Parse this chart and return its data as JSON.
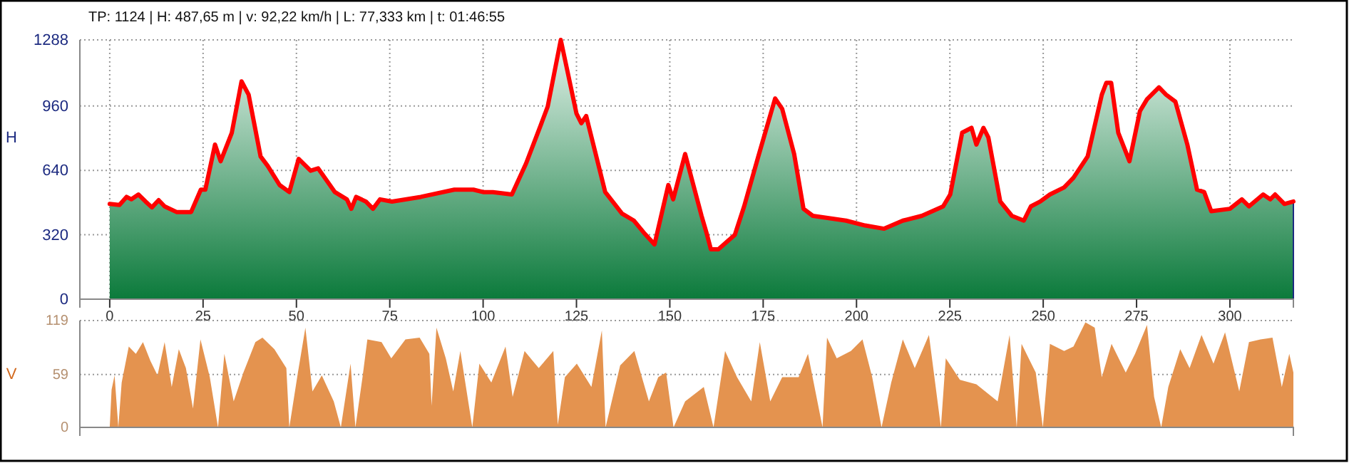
{
  "chart_data": [
    {
      "type": "area",
      "title": "TP: 1124 | H: 487,65 m | v: 92,22 km/h | L: 77,333 km | t: 01:46:55",
      "ylabel": "H",
      "color": "#ff0000",
      "x": [
        0,
        2.6,
        4.5,
        5.8,
        7.7,
        9.6,
        11.3,
        13.1,
        14.7,
        17.9,
        21.8,
        24.4,
        25.6,
        28.2,
        29.7,
        32.7,
        35.3,
        37.2,
        40.4,
        42.3,
        45.5,
        48.1,
        50.6,
        53.8,
        55.8,
        60.3,
        63.5,
        64.7,
        66,
        68.6,
        70.5,
        72.4,
        75.6,
        83.3,
        92.3,
        97.4,
        100,
        102.6,
        107.7,
        111.5,
        115.4,
        117.3,
        120.8,
        125,
        126.3,
        127.6,
        132.7,
        137.2,
        140.4,
        143,
        145.9,
        149.6,
        150.9,
        154.1,
        158.5,
        159.8,
        161,
        163,
        167.4,
        169.9,
        173.7,
        178.2,
        180.1,
        183.3,
        185.8,
        188.3,
        197.2,
        202.3,
        207.4,
        212.4,
        217.5,
        223.2,
        225.1,
        228.3,
        230.8,
        232.1,
        234,
        235.3,
        238.5,
        241.6,
        244.8,
        246.7,
        249.2,
        251.8,
        255.6,
        258.1,
        261.9,
        265.7,
        266.9,
        268.2,
        270.1,
        273.1,
        275.9,
        277.8,
        281,
        282.9,
        285.4,
        288.6,
        291.2,
        293.1,
        295,
        300,
        303.2,
        305.1,
        308.9,
        310.8,
        312.1,
        314.6,
        317
      ],
      "values": [
        473,
        468,
        508,
        496,
        520,
        485,
        456,
        492,
        461,
        433,
        433,
        544,
        544,
        768,
        685,
        827,
        1082,
        1016,
        709,
        662,
        567,
        532,
        697,
        638,
        650,
        532,
        496,
        449,
        508,
        485,
        449,
        496,
        485,
        508,
        544,
        544,
        532,
        532,
        520,
        674,
        863,
        957,
        1288,
        922,
        874,
        910,
        532,
        425,
        390,
        331,
        272,
        567,
        496,
        721,
        414,
        331,
        248,
        248,
        319,
        461,
        709,
        997,
        945,
        721,
        449,
        414,
        390,
        366,
        350,
        390,
        414,
        461,
        520,
        827,
        851,
        768,
        851,
        804,
        485,
        414,
        390,
        461,
        485,
        520,
        555,
        603,
        709,
        1016,
        1075,
        1075,
        827,
        685,
        934,
        993,
        1052,
        1016,
        981,
        768,
        544,
        532,
        437,
        449,
        496,
        461,
        520,
        496,
        520,
        473,
        485
      ],
      "xlim": [
        -8,
        317
      ],
      "xticks": [
        0,
        25,
        50,
        75,
        100,
        125,
        150,
        175,
        200,
        225,
        250,
        275,
        300
      ],
      "ylim": [
        0,
        1288
      ],
      "yticks": [
        0,
        320,
        640,
        960,
        1288
      ],
      "grid": true
    },
    {
      "type": "area",
      "ylabel": "V",
      "color": "#e4934f",
      "x": [
        0,
        0.5,
        1.3,
        2.3,
        3.2,
        5.1,
        7,
        8.9,
        10.9,
        12.8,
        14.7,
        16.6,
        18.5,
        20.4,
        22.3,
        24.3,
        26.8,
        29,
        30.7,
        33.2,
        35.8,
        39,
        40.9,
        44.1,
        47.3,
        48.1,
        50.4,
        52.4,
        54.3,
        56.8,
        60,
        61.9,
        64.5,
        65.8,
        67.7,
        69,
        72.8,
        75.4,
        79.2,
        83,
        85.6,
        86.2,
        87.5,
        90,
        92,
        93.9,
        97.1,
        99,
        102.2,
        106,
        107.9,
        111.1,
        114.9,
        118.8,
        120,
        121.9,
        125.1,
        129,
        131.8,
        132.8,
        136.7,
        140.5,
        144.4,
        146.9,
        149,
        151,
        154.1,
        159.1,
        161.7,
        164.8,
        168,
        171.8,
        174.1,
        176.9,
        180.1,
        184.5,
        187,
        190.9,
        192.1,
        194.7,
        198.5,
        201.6,
        204.2,
        206.7,
        209.3,
        212.4,
        215.6,
        219.4,
        222.6,
        223.9,
        227.7,
        232.1,
        237.8,
        241,
        242.9,
        244.2,
        248,
        249.9,
        251.8,
        255.6,
        258.1,
        261.3,
        263.8,
        265.7,
        268.3,
        272.1,
        274.6,
        277.8,
        279.7,
        281.6,
        283.5,
        286.7,
        289.2,
        292.4,
        295.6,
        298.7,
        302.5,
        305.1,
        308.2,
        311.4,
        313.9,
        315.9,
        317
      ],
      "values": [
        0,
        42,
        58,
        0,
        50,
        90,
        82,
        95,
        74,
        58,
        95,
        45,
        87,
        66,
        21,
        98,
        56,
        0,
        82,
        29,
        61,
        95,
        100,
        87,
        66,
        0,
        61,
        111,
        40,
        58,
        29,
        0,
        71,
        0,
        56,
        98,
        95,
        77,
        98,
        100,
        82,
        24,
        111,
        77,
        40,
        85,
        0,
        71,
        50,
        90,
        34,
        85,
        66,
        85,
        3,
        56,
        71,
        45,
        108,
        0,
        69,
        85,
        29,
        56,
        61,
        0,
        29,
        45,
        0,
        85,
        56,
        29,
        95,
        29,
        56,
        56,
        82,
        0,
        100,
        77,
        85,
        98,
        56,
        0,
        50,
        98,
        66,
        103,
        0,
        77,
        53,
        48,
        29,
        103,
        0,
        93,
        61,
        0,
        93,
        85,
        90,
        117,
        111,
        56,
        93,
        61,
        82,
        114,
        34,
        0,
        45,
        87,
        66,
        103,
        71,
        106,
        40,
        95,
        98,
        100,
        45,
        82,
        61
      ],
      "xlim": [
        -8,
        317
      ],
      "ylim": [
        0,
        119
      ],
      "yticks": [
        0,
        59,
        119
      ],
      "grid": "y",
      "tick_labels": "y"
    }
  ]
}
